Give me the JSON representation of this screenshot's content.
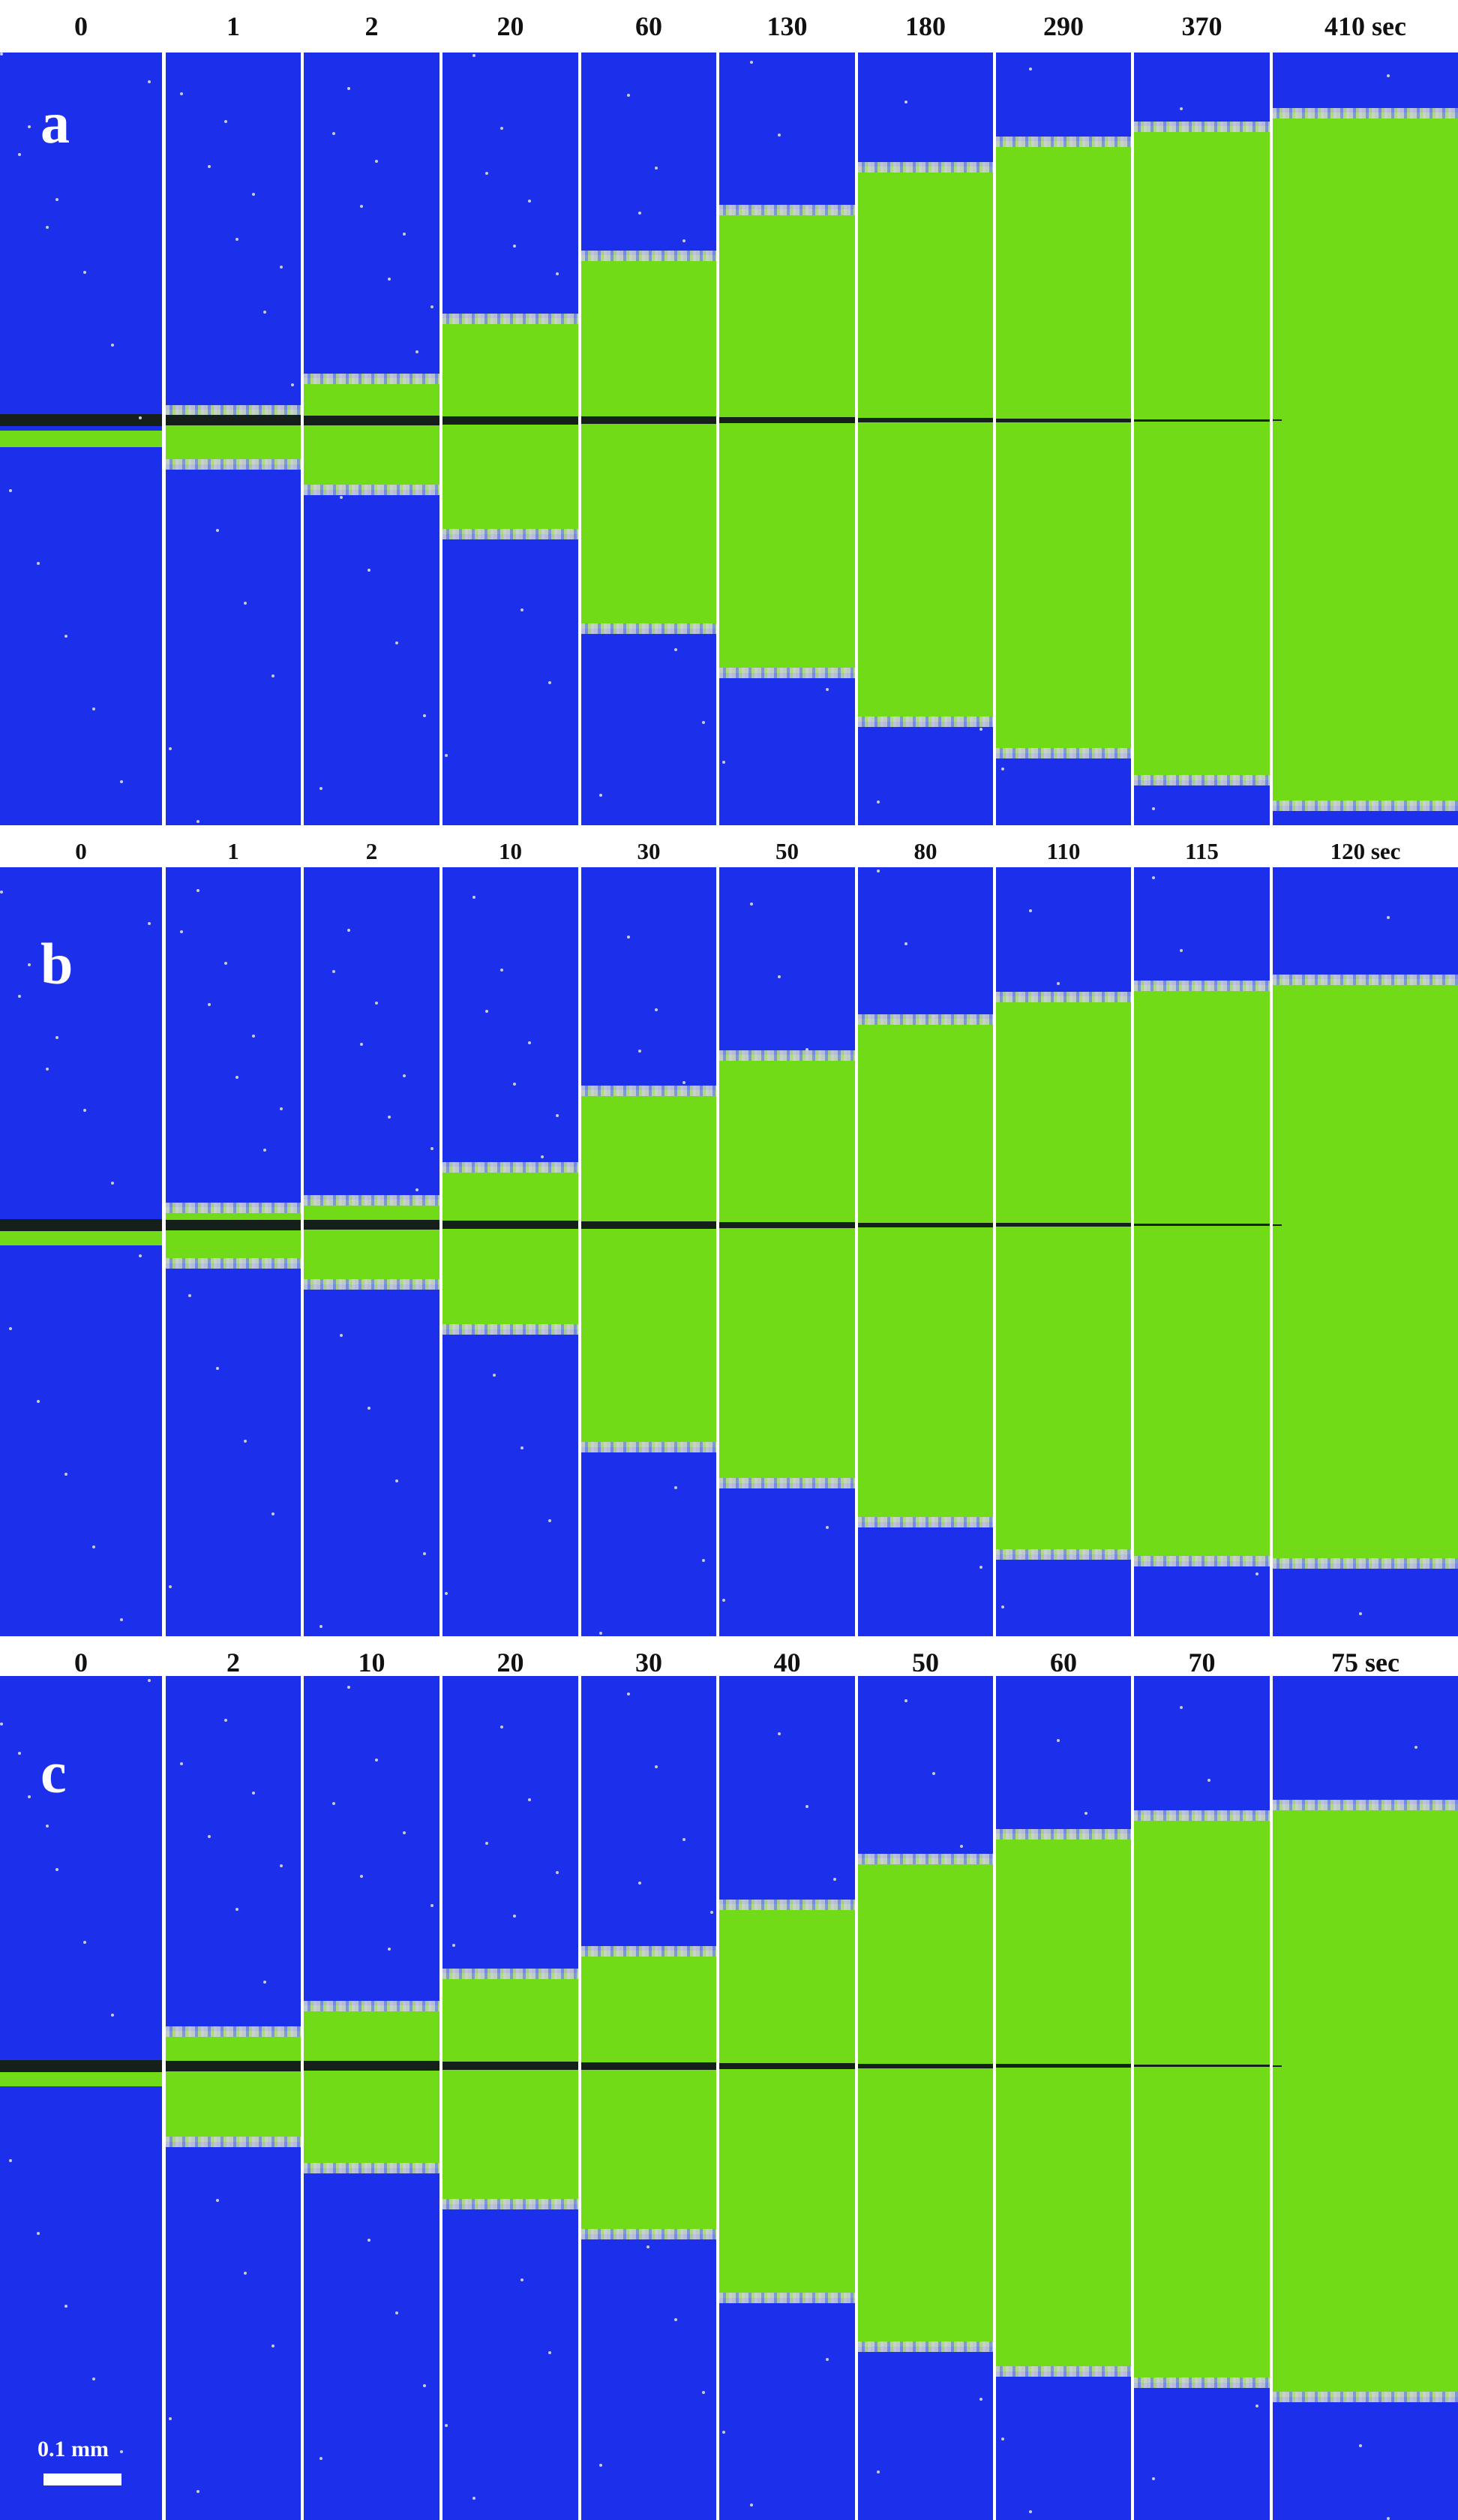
{
  "figure": {
    "rows": [
      {
        "panel_label": "a",
        "time_labels": [
          "0",
          "1",
          "2",
          "20",
          "60",
          "130",
          "180",
          "290",
          "370",
          "410 sec"
        ],
        "green_band": [
          {
            "top": 0.489,
            "bottom": 0.511
          },
          {
            "top": 0.462,
            "bottom": 0.533
          },
          {
            "top": 0.421,
            "bottom": 0.566
          },
          {
            "top": 0.344,
            "bottom": 0.623
          },
          {
            "top": 0.262,
            "bottom": 0.746
          },
          {
            "top": 0.203,
            "bottom": 0.803
          },
          {
            "top": 0.148,
            "bottom": 0.866
          },
          {
            "top": 0.115,
            "bottom": 0.907
          },
          {
            "top": 0.095,
            "bottom": 0.942
          },
          {
            "top": 0.078,
            "bottom": 0.975
          }
        ]
      },
      {
        "panel_label": "b",
        "time_labels": [
          "0",
          "1",
          "2",
          "10",
          "30",
          "50",
          "80",
          "110",
          "115",
          "120 sec"
        ],
        "green_band": [
          {
            "top": 0.47,
            "bottom": 0.492
          },
          {
            "top": 0.442,
            "bottom": 0.515
          },
          {
            "top": 0.432,
            "bottom": 0.542
          },
          {
            "top": 0.389,
            "bottom": 0.601
          },
          {
            "top": 0.29,
            "bottom": 0.754
          },
          {
            "top": 0.244,
            "bottom": 0.801
          },
          {
            "top": 0.197,
            "bottom": 0.852
          },
          {
            "top": 0.168,
            "bottom": 0.894
          },
          {
            "top": 0.153,
            "bottom": 0.902
          },
          {
            "top": 0.145,
            "bottom": 0.905
          }
        ]
      },
      {
        "panel_label": "c",
        "time_labels": [
          "0",
          "2",
          "10",
          "20",
          "30",
          "40",
          "50",
          "60",
          "70",
          "75 sec"
        ],
        "green_band": [
          {
            "top": 0.468,
            "bottom": 0.486
          },
          {
            "top": 0.42,
            "bottom": 0.552
          },
          {
            "top": 0.39,
            "bottom": 0.583
          },
          {
            "top": 0.352,
            "bottom": 0.626
          },
          {
            "top": 0.325,
            "bottom": 0.661
          },
          {
            "top": 0.27,
            "bottom": 0.737
          },
          {
            "top": 0.216,
            "bottom": 0.795
          },
          {
            "top": 0.187,
            "bottom": 0.824
          },
          {
            "top": 0.164,
            "bottom": 0.837
          },
          {
            "top": 0.152,
            "bottom": 0.854
          }
        ]
      }
    ],
    "scale_bar_label": "0.1 mm",
    "colors": {
      "background": "#1c2fea",
      "wetted": "#72db18",
      "front_edge": "#c6cbd6",
      "crack": "#15201a",
      "divider": "#ffffff"
    }
  }
}
